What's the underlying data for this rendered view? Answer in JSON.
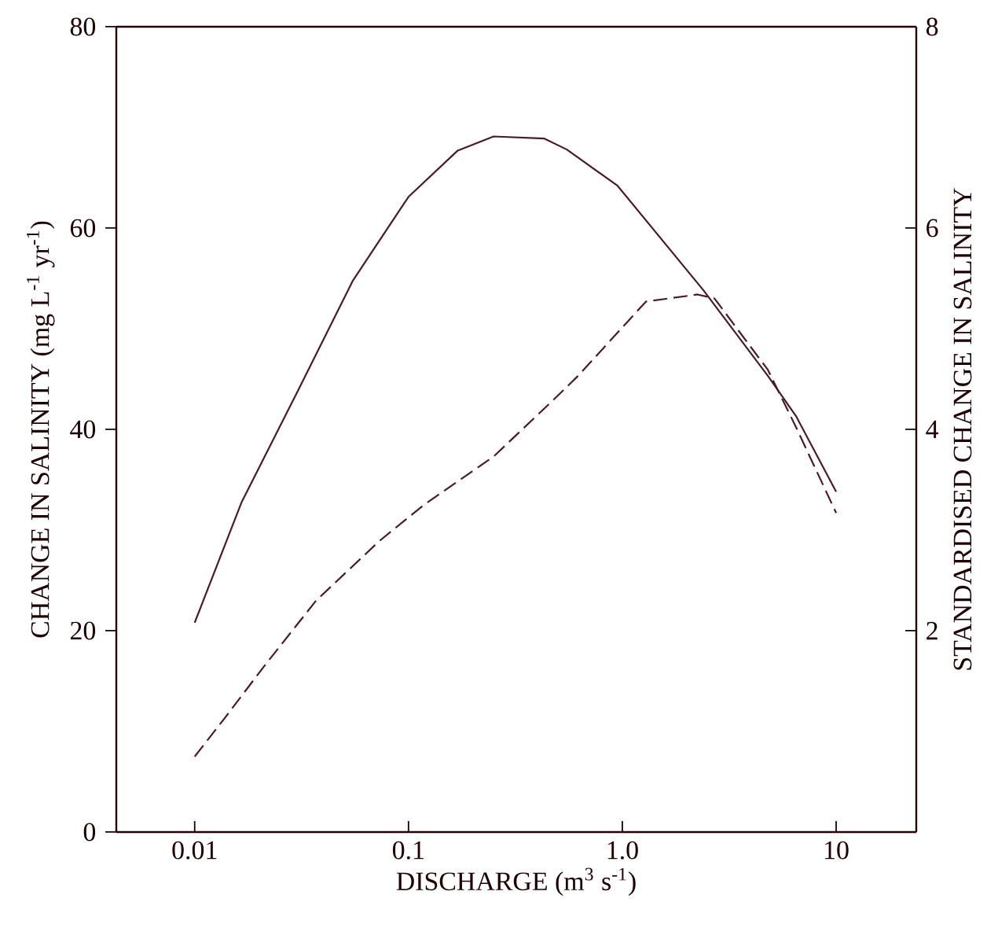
{
  "chart_data": {
    "type": "line",
    "xlabel": "DISCHARGE (m$^{3}$ s$^{-1}$)",
    "ylabel": "CHANGE IN SALINITY (mg L$^{-1}$ yr$^{-1}$)",
    "y2label": "STANDARDISED CHANGE IN SALINITY",
    "log": "x",
    "xlim": [
      0.0043,
      23.7
    ],
    "xticks": [
      0.01,
      0.1,
      {
        "value": 1,
        "label": "1.0"
      },
      10
    ],
    "ylim": [
      0,
      80
    ],
    "yticks": [
      0,
      20,
      40,
      60,
      80
    ],
    "y2lim": [
      0,
      8
    ],
    "y2ticks": [
      2,
      4,
      6,
      8
    ],
    "grid": false,
    "marker": "none",
    "series": [
      {
        "color": "#4a1a2a",
        "line_style": "solid",
        "x": [
          0.01,
          0.0166,
          0.03,
          0.055,
          0.1,
          0.17,
          0.25,
          0.43,
          0.55,
          0.95,
          2.4,
          4.8,
          6.5,
          10
        ],
        "values": [
          20.8,
          32.8,
          43.6,
          54.8,
          63.1,
          67.7,
          69.1,
          68.9,
          67.8,
          64.2,
          53.8,
          45.3,
          41.3,
          33.8
        ]
      },
      {
        "color": "#4a1a2a",
        "line_style": "dashed",
        "axis": "y2",
        "x": [
          0.01,
          0.0138,
          0.021,
          0.037,
          0.073,
          0.118,
          0.25,
          0.48,
          0.62,
          1.29,
          2.25,
          2.7,
          4.8,
          6.5,
          10
        ],
        "values": [
          0.75,
          1.13,
          1.64,
          2.3,
          2.89,
          3.25,
          3.73,
          4.3,
          4.53,
          5.27,
          5.34,
          5.3,
          4.59,
          4.02,
          3.17
        ]
      }
    ]
  }
}
